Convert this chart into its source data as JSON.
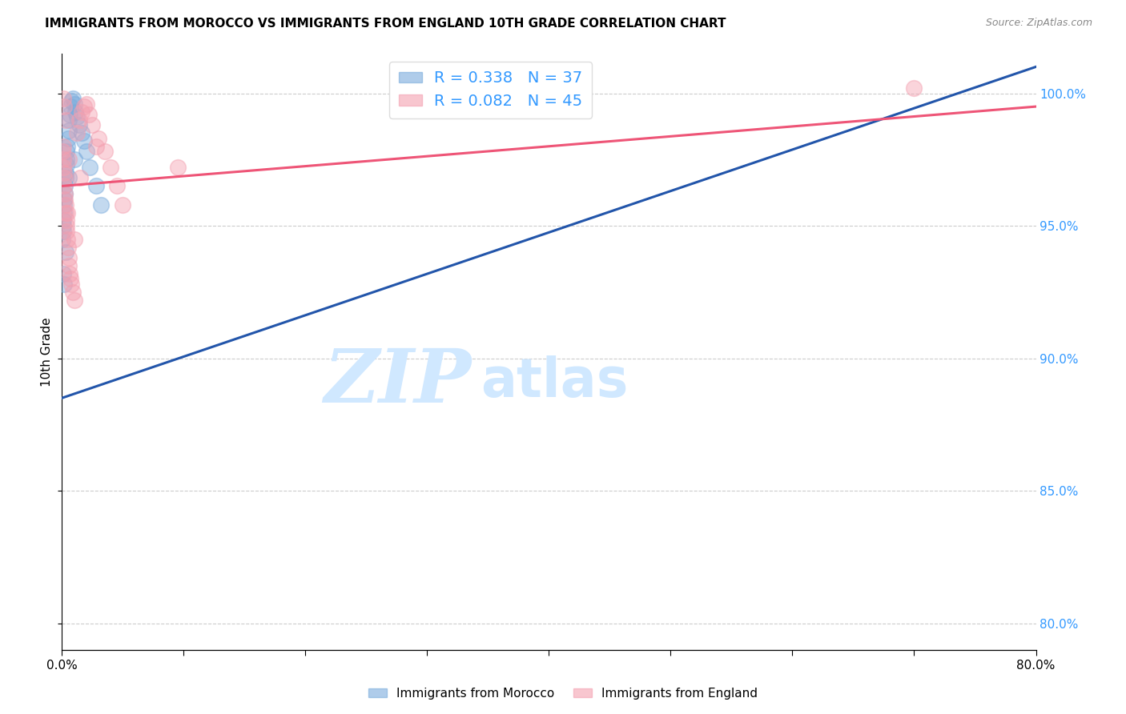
{
  "title": "IMMIGRANTS FROM MOROCCO VS IMMIGRANTS FROM ENGLAND 10TH GRADE CORRELATION CHART",
  "source": "Source: ZipAtlas.com",
  "ylabel": "10th Grade",
  "xlim": [
    0.0,
    80.0
  ],
  "ylim": [
    79.0,
    101.5
  ],
  "xticks": [
    0.0,
    10.0,
    20.0,
    30.0,
    40.0,
    50.0,
    60.0,
    70.0,
    80.0
  ],
  "yticks_right": [
    80.0,
    85.0,
    90.0,
    95.0,
    100.0
  ],
  "ytick_right_labels": [
    "80.0%",
    "85.0%",
    "90.0%",
    "95.0%",
    "100.0%"
  ],
  "morocco_color": "#7AABDC",
  "england_color": "#F4A0B0",
  "morocco_line_color": "#2255AA",
  "england_line_color": "#EE5577",
  "morocco_R": 0.338,
  "morocco_N": 37,
  "england_R": 0.082,
  "england_N": 45,
  "watermark_zip": "ZIP",
  "watermark_atlas": "atlas",
  "watermark_color": "#D0E8FF",
  "grid_color": "#CCCCCC",
  "morocco_x": [
    0.05,
    0.08,
    0.1,
    0.12,
    0.15,
    0.18,
    0.2,
    0.22,
    0.25,
    0.28,
    0.3,
    0.35,
    0.38,
    0.4,
    0.45,
    0.5,
    0.55,
    0.6,
    0.65,
    0.7,
    0.8,
    0.9,
    1.0,
    1.1,
    1.2,
    1.4,
    1.6,
    1.8,
    2.0,
    2.3,
    2.8,
    3.2,
    0.12,
    0.2,
    0.3,
    0.6,
    1.0
  ],
  "morocco_y": [
    94.5,
    95.0,
    95.2,
    94.8,
    95.5,
    96.0,
    95.8,
    96.2,
    96.5,
    96.8,
    97.0,
    97.3,
    97.5,
    97.8,
    98.0,
    98.3,
    98.6,
    99.0,
    99.2,
    99.5,
    99.7,
    99.8,
    99.6,
    99.3,
    99.1,
    98.8,
    98.5,
    98.2,
    97.8,
    97.2,
    96.5,
    95.8,
    93.2,
    92.8,
    94.0,
    96.8,
    97.5
  ],
  "england_x": [
    0.05,
    0.08,
    0.1,
    0.12,
    0.15,
    0.18,
    0.2,
    0.22,
    0.25,
    0.28,
    0.3,
    0.35,
    0.38,
    0.4,
    0.45,
    0.5,
    0.55,
    0.6,
    0.65,
    0.7,
    0.8,
    0.9,
    1.0,
    1.2,
    1.4,
    1.6,
    1.8,
    2.0,
    2.2,
    2.5,
    3.0,
    3.5,
    4.0,
    4.5,
    5.0,
    0.12,
    0.2,
    0.3,
    0.45,
    0.6,
    1.0,
    1.5,
    2.8,
    9.5,
    70.0
  ],
  "england_y": [
    97.8,
    98.0,
    97.5,
    97.2,
    97.0,
    96.8,
    96.5,
    96.2,
    96.0,
    95.8,
    95.5,
    95.2,
    95.0,
    94.8,
    94.5,
    94.2,
    93.8,
    93.5,
    93.2,
    93.0,
    92.8,
    92.5,
    92.2,
    98.5,
    99.0,
    99.3,
    99.5,
    99.6,
    99.2,
    98.8,
    98.3,
    97.8,
    97.2,
    96.5,
    95.8,
    99.8,
    99.5,
    99.0,
    95.5,
    97.5,
    94.5,
    96.8,
    98.0,
    97.2,
    100.2
  ],
  "morocco_trend_x": [
    0.0,
    80.0
  ],
  "morocco_trend_y": [
    88.5,
    101.0
  ],
  "england_trend_x": [
    0.0,
    80.0
  ],
  "england_trend_y": [
    96.5,
    99.5
  ]
}
